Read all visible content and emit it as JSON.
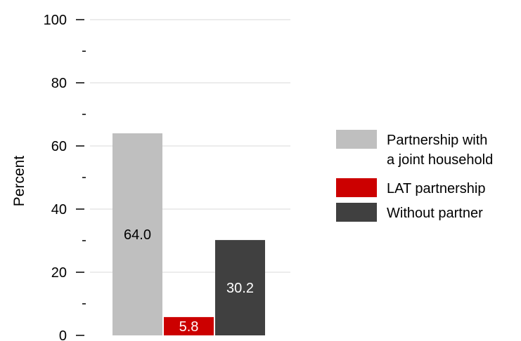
{
  "chart_data": {
    "type": "bar",
    "title": "",
    "xlabel": "",
    "ylabel": "Percent",
    "ylim": [
      0,
      100
    ],
    "y_ticks_major": [
      0,
      20,
      40,
      60,
      80,
      100
    ],
    "y_ticks_minor": [
      10,
      30,
      50,
      70,
      90
    ],
    "grid": true,
    "legend_position": "right",
    "series": [
      {
        "name": "Partnership with a joint household",
        "legend_lines": [
          "Partnership with",
          "a joint household"
        ],
        "value": 64.0,
        "label": "64.0",
        "color": "#bfbfbf",
        "label_color": "#000000"
      },
      {
        "name": "LAT partnership",
        "legend_lines": [
          "LAT partnership"
        ],
        "value": 5.8,
        "label": "5.8",
        "color": "#cc0000",
        "label_color": "#ffffff"
      },
      {
        "name": "Without partner",
        "legend_lines": [
          "Without partner"
        ],
        "value": 30.2,
        "label": "30.2",
        "color": "#404040",
        "label_color": "#ffffff"
      }
    ]
  }
}
